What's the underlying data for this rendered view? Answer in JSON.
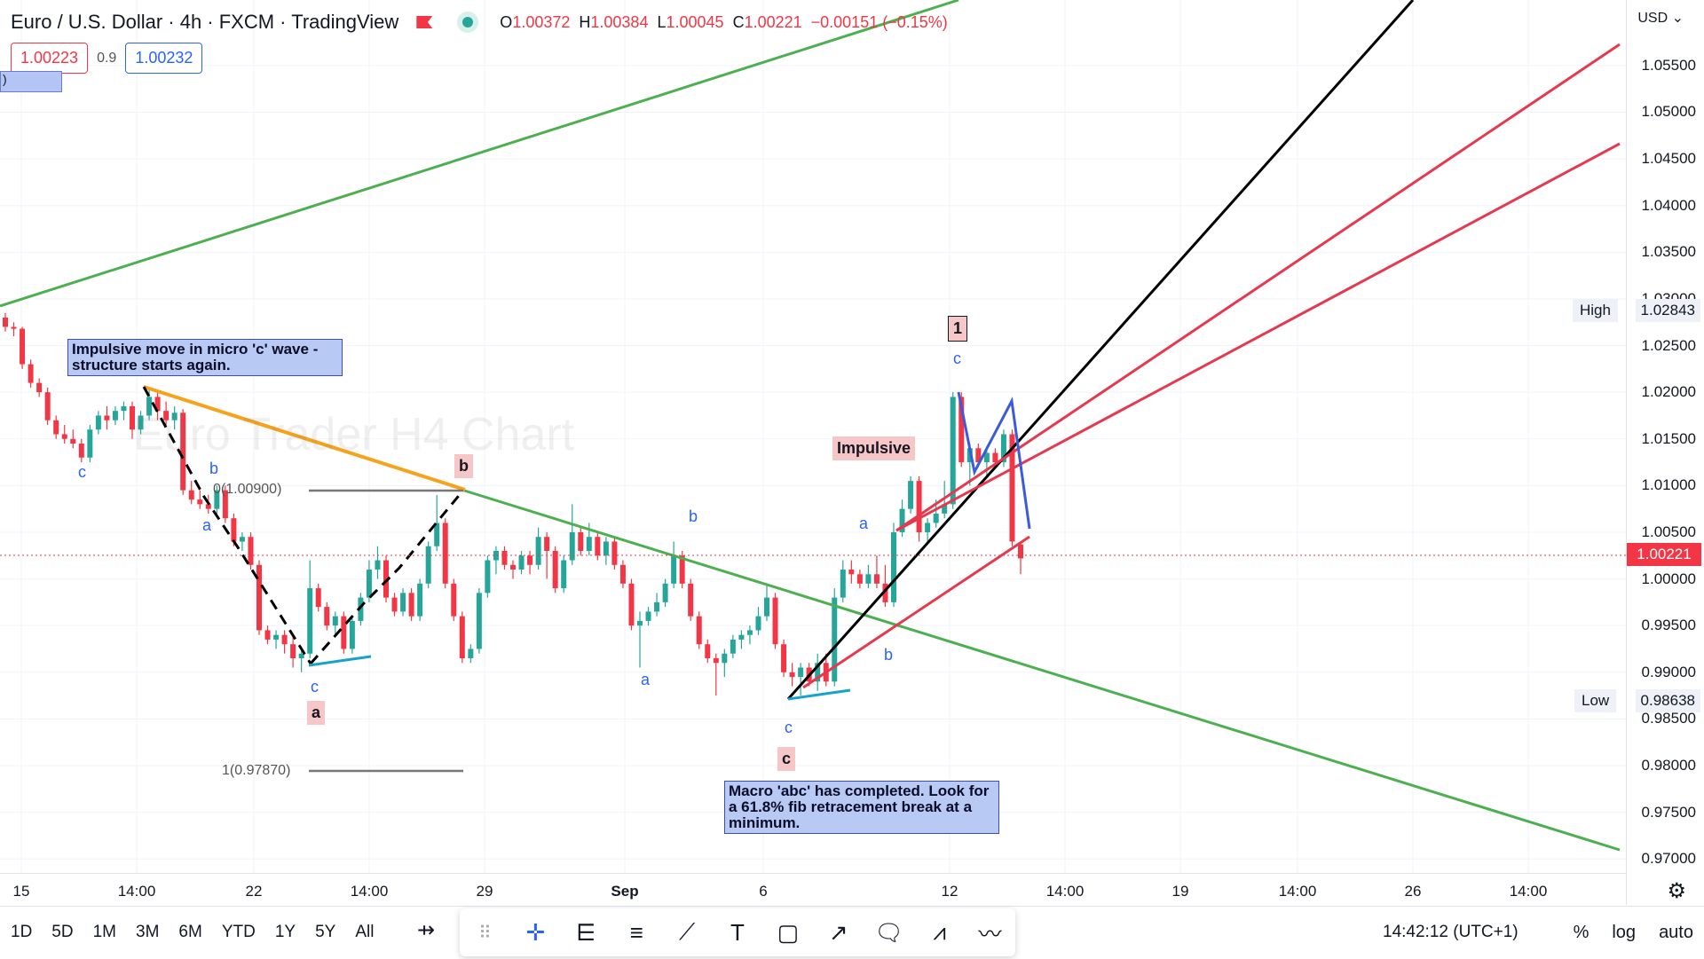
{
  "header": {
    "title": "Euro / U.S. Dollar · 4h · FXCM · TradingView",
    "ohlc": {
      "o": "1.00372",
      "h": "1.00384",
      "l": "1.00045",
      "c": "1.00221",
      "chg": "−0.00151 (−0.15%)"
    },
    "o_label": "O",
    "h_label": "H",
    "l_label": "L",
    "c_label": "C"
  },
  "trade": {
    "sell": "1.00223",
    "spread": "0.9",
    "buy": "1.00232"
  },
  "stub_text": ")",
  "watermark": "Euro Trader H4 Chart",
  "notes": {
    "micro": "Impulsive move in micro 'c' wave - structure starts again.",
    "macro": "Macro 'abc' has completed. Look for a 61.8% fib retracement break at a minimum."
  },
  "tags": {
    "impulsive": "Impulsive",
    "one": "1",
    "a": "a",
    "b": "b",
    "c": "c"
  },
  "wave_labels": {
    "c1": "c",
    "b1": "b",
    "a1": "a",
    "c2": "c",
    "a2": "a",
    "b2": "b",
    "c3": "c",
    "a3": "a",
    "b3": "b",
    "c4": "c"
  },
  "fib": {
    "top": "0(1.00900)",
    "bottom": "1(0.97870)"
  },
  "y_axis": {
    "currency": "USD",
    "ticks": [
      "1.05500",
      "1.05000",
      "1.04500",
      "1.04000",
      "1.03500",
      "1.03000",
      "1.02500",
      "1.02000",
      "1.01500",
      "1.01000",
      "1.00500",
      "1.00000",
      "0.99500",
      "0.99000",
      "0.98500",
      "0.98000",
      "0.97500",
      "0.97000"
    ],
    "last_price": "1.00221",
    "high_label": "High",
    "high_value": "1.02843",
    "low_label": "Low",
    "low_value": "0.98638"
  },
  "x_axis": {
    "ticks": [
      "15",
      "14:00",
      "22",
      "14:00",
      "29",
      "Sep",
      "6",
      "12",
      "14:00",
      "19",
      "14:00",
      "26",
      "14:00"
    ]
  },
  "bottom": {
    "ranges": [
      "1D",
      "5D",
      "1M",
      "3M",
      "6M",
      "YTD",
      "1Y",
      "5Y",
      "All"
    ],
    "clock": "14:42:12 (UTC+1)",
    "percent": "%",
    "log": "log",
    "auto": "auto"
  },
  "colors": {
    "up": "#26a69a",
    "down": "#f23645",
    "green_line": "#4caf50",
    "red_line": "#e53950",
    "orange": "#f7a21b",
    "blue_wave": "#3b5bdb",
    "cyan": "#17a2c9"
  },
  "chart_data": {
    "type": "candlestick",
    "symbol": "EURUSD",
    "interval": "4h",
    "ylim": [
      0.9685,
      1.0605
    ],
    "x_ticks": [
      "15",
      "14:00",
      "22",
      "14:00",
      "29",
      "Sep",
      "6",
      "12",
      "14:00",
      "19",
      "14:00",
      "26",
      "14:00"
    ],
    "candles": [
      [
        1.028,
        1.0285,
        1.0265,
        1.027
      ],
      [
        1.027,
        1.0275,
        1.026,
        1.0268
      ],
      [
        1.0268,
        1.027,
        1.0225,
        1.023
      ],
      [
        1.023,
        1.0235,
        1.0205,
        1.021
      ],
      [
        1.021,
        1.0215,
        1.0195,
        1.02
      ],
      [
        1.02,
        1.0205,
        1.0165,
        1.017
      ],
      [
        1.017,
        1.0175,
        1.015,
        1.0155
      ],
      [
        1.0155,
        1.0165,
        1.0145,
        1.015
      ],
      [
        1.015,
        1.016,
        1.014,
        1.0145
      ],
      [
        1.0145,
        1.015,
        1.0125,
        1.013
      ],
      [
        1.013,
        1.0165,
        1.0125,
        1.016
      ],
      [
        1.016,
        1.018,
        1.0155,
        1.0175
      ],
      [
        1.0175,
        1.0185,
        1.016,
        1.017
      ],
      [
        1.017,
        1.0185,
        1.0165,
        1.018
      ],
      [
        1.018,
        1.019,
        1.017,
        1.0185
      ],
      [
        1.0185,
        1.019,
        1.015,
        1.016
      ],
      [
        1.016,
        1.018,
        1.0155,
        1.0175
      ],
      [
        1.0175,
        1.0205,
        1.017,
        1.0195
      ],
      [
        1.0195,
        1.02,
        1.017,
        1.018
      ],
      [
        1.018,
        1.019,
        1.0165,
        1.017
      ],
      [
        1.017,
        1.0185,
        1.016,
        1.0178
      ],
      [
        1.0178,
        1.0182,
        1.009,
        1.0095
      ],
      [
        1.0095,
        1.0105,
        1.008,
        1.0085
      ],
      [
        1.0085,
        1.0095,
        1.0075,
        1.008
      ],
      [
        1.008,
        1.009,
        1.007,
        1.0075
      ],
      [
        1.0075,
        1.01,
        1.007,
        1.0095
      ],
      [
        1.0095,
        1.01,
        1.006,
        1.0065
      ],
      [
        1.0065,
        1.007,
        1.0035,
        1.004
      ],
      [
        1.004,
        1.005,
        1.003,
        1.0045
      ],
      [
        1.0045,
        1.005,
        1.001,
        1.0015
      ],
      [
        1.0015,
        1.002,
        0.994,
        0.9945
      ],
      [
        0.9945,
        0.995,
        0.993,
        0.9935
      ],
      [
        0.9935,
        0.9945,
        0.9925,
        0.994
      ],
      [
        0.994,
        0.9945,
        0.992,
        0.993
      ],
      [
        0.993,
        0.994,
        0.9905,
        0.9915
      ],
      [
        0.9915,
        0.9925,
        0.99,
        0.992
      ],
      [
        0.992,
        1.002,
        0.9915,
        0.999
      ],
      [
        0.999,
        0.9995,
        0.9965,
        0.997
      ],
      [
        0.997,
        0.9975,
        0.9945,
        0.995
      ],
      [
        0.995,
        0.9965,
        0.994,
        0.996
      ],
      [
        0.996,
        0.9965,
        0.992,
        0.9925
      ],
      [
        0.9925,
        0.996,
        0.992,
        0.9955
      ],
      [
        0.9955,
        0.9985,
        0.995,
        0.998
      ],
      [
        0.998,
        1.002,
        0.9975,
        1.001
      ],
      [
        1.001,
        1.0035,
        1.0,
        1.002
      ],
      [
        1.002,
        1.0025,
        0.9975,
        0.998
      ],
      [
        0.998,
        0.9985,
        0.996,
        0.9965
      ],
      [
        0.9965,
        0.999,
        0.996,
        0.9985
      ],
      [
        0.9985,
        0.999,
        0.9955,
        0.996
      ],
      [
        0.996,
        1.0,
        0.9955,
        0.9995
      ],
      [
        0.9995,
        1.004,
        0.999,
        1.0035
      ],
      [
        1.0035,
        1.009,
        1.003,
        1.006
      ],
      [
        1.006,
        1.0065,
        0.999,
        0.9995
      ],
      [
        0.9995,
        1.0,
        0.9955,
        0.996
      ],
      [
        0.996,
        0.9965,
        0.991,
        0.9915
      ],
      [
        0.9915,
        0.993,
        0.991,
        0.9925
      ],
      [
        0.9925,
        0.999,
        0.992,
        0.9985
      ],
      [
        0.9985,
        1.0025,
        0.998,
        1.002
      ],
      [
        1.002,
        1.0035,
        1.0005,
        1.003
      ],
      [
        1.003,
        1.0035,
        1.001,
        1.0015
      ],
      [
        1.0015,
        1.002,
        1.0,
        1.001
      ],
      [
        1.001,
        1.003,
        1.0005,
        1.0025
      ],
      [
        1.0025,
        1.003,
        1.0005,
        1.0015
      ],
      [
        1.0015,
        1.0055,
        1.001,
        1.0045
      ],
      [
        1.0045,
        1.005,
        1.0,
        1.003
      ],
      [
        1.003,
        1.0035,
        0.9985,
        0.999
      ],
      [
        0.999,
        1.0025,
        0.9985,
        1.002
      ],
      [
        1.002,
        1.008,
        1.0015,
        1.005
      ],
      [
        1.005,
        1.0055,
        1.0025,
        1.003
      ],
      [
        1.003,
        1.006,
        1.0025,
        1.0045
      ],
      [
        1.0045,
        1.005,
        1.002,
        1.0025
      ],
      [
        1.0025,
        1.0045,
        1.0015,
        1.004
      ],
      [
        1.004,
        1.0045,
        1.001,
        1.0015
      ],
      [
        1.0015,
        1.002,
        0.999,
        0.9995
      ],
      [
        0.9995,
        1.0,
        0.9945,
        0.995
      ],
      [
        0.995,
        0.9965,
        0.9905,
        0.9955
      ],
      [
        0.9955,
        0.997,
        0.995,
        0.9965
      ],
      [
        0.9965,
        0.9985,
        0.996,
        0.9975
      ],
      [
        0.9975,
        1.0,
        0.997,
        0.9995
      ],
      [
        0.9995,
        1.004,
        0.999,
        1.0025
      ],
      [
        1.0025,
        1.003,
        0.999,
        0.9995
      ],
      [
        0.9995,
        1.0,
        0.9955,
        0.996
      ],
      [
        0.996,
        0.9965,
        0.9925,
        0.993
      ],
      [
        0.993,
        0.9935,
        0.991,
        0.9915
      ],
      [
        0.9915,
        0.992,
        0.9875,
        0.991
      ],
      [
        0.991,
        0.9925,
        0.9895,
        0.992
      ],
      [
        0.992,
        0.994,
        0.9915,
        0.9935
      ],
      [
        0.9935,
        0.9945,
        0.9925,
        0.994
      ],
      [
        0.994,
        0.995,
        0.993,
        0.9945
      ],
      [
        0.9945,
        0.997,
        0.994,
        0.996
      ],
      [
        0.996,
        0.9995,
        0.9955,
        0.998
      ],
      [
        0.998,
        0.9985,
        0.9925,
        0.993
      ],
      [
        0.993,
        0.9935,
        0.9895,
        0.99
      ],
      [
        0.99,
        0.991,
        0.9885,
        0.9895
      ],
      [
        0.9895,
        0.991,
        0.9875,
        0.9905
      ],
      [
        0.9905,
        0.991,
        0.9885,
        0.989
      ],
      [
        0.989,
        0.992,
        0.988,
        0.991
      ],
      [
        0.991,
        0.992,
        0.9885,
        0.989
      ],
      [
        0.989,
        0.999,
        0.9885,
        0.998
      ],
      [
        0.998,
        1.002,
        0.9975,
        1.001
      ],
      [
        1.001,
        1.002,
        0.9995,
        1.0005
      ],
      [
        1.0005,
        1.001,
        0.999,
        0.9995
      ],
      [
        0.9995,
        1.0015,
        0.999,
        1.0005
      ],
      [
        1.0005,
        1.0025,
        0.999,
        0.9995
      ],
      [
        0.9995,
        1.0015,
        0.997,
        0.9975
      ],
      [
        0.9975,
        1.006,
        0.997,
        1.005
      ],
      [
        1.005,
        1.0085,
        1.0045,
        1.0075
      ],
      [
        1.0075,
        1.011,
        1.007,
        1.0105
      ],
      [
        1.0105,
        1.011,
        1.004,
        1.005
      ],
      [
        1.005,
        1.0065,
        1.004,
        1.006
      ],
      [
        1.006,
        1.0085,
        1.0055,
        1.007
      ],
      [
        1.007,
        1.0105,
        1.0065,
        1.008
      ],
      [
        1.008,
        1.02,
        1.0075,
        1.0195
      ],
      [
        1.0195,
        1.02,
        1.012,
        1.0125
      ],
      [
        1.0125,
        1.0145,
        1.01,
        1.014
      ],
      [
        1.014,
        1.0145,
        1.012,
        1.0125
      ],
      [
        1.0125,
        1.014,
        1.011,
        1.0135
      ],
      [
        1.0135,
        1.014,
        1.012,
        1.0125
      ],
      [
        1.0125,
        1.016,
        1.012,
        1.0155
      ],
      [
        1.0155,
        1.016,
        1.0035,
        1.004
      ],
      [
        1.0037,
        1.0038,
        1.0005,
        1.0022
      ]
    ],
    "last_price": 1.00221,
    "high": 1.02843,
    "low": 0.98638,
    "fib_levels": [
      {
        "label": "0(1.00900)",
        "value": 1.009
      },
      {
        "label": "1(0.97870)",
        "value": 0.9787
      }
    ]
  }
}
